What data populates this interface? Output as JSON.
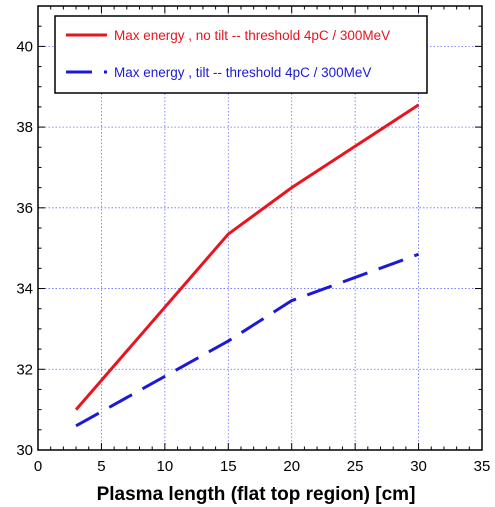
{
  "chart_data": {
    "type": "line",
    "title": "",
    "xlabel": "Plasma length (flat top region) [cm]",
    "ylabel": "",
    "xlim": [
      0,
      35
    ],
    "ylim": [
      30,
      41
    ],
    "xticks": [
      0,
      5,
      10,
      15,
      20,
      25,
      30,
      35
    ],
    "yticks": [
      30,
      32,
      34,
      36,
      38,
      40
    ],
    "grid": true,
    "legend_position": "top-left",
    "series": [
      {
        "name": "Max energy , no tilt -- threshold 4pC / 300MeV",
        "color": "#e8141e",
        "style": "solid",
        "x": [
          3,
          15,
          20,
          30
        ],
        "y": [
          31.0,
          35.35,
          36.5,
          38.55
        ]
      },
      {
        "name": "Max energy , tilt -- threshold 4pC / 300MeV",
        "color": "#1a1ad6",
        "style": "dashed",
        "x": [
          3,
          15,
          20,
          30
        ],
        "y": [
          30.6,
          32.7,
          33.7,
          34.85
        ]
      }
    ]
  }
}
